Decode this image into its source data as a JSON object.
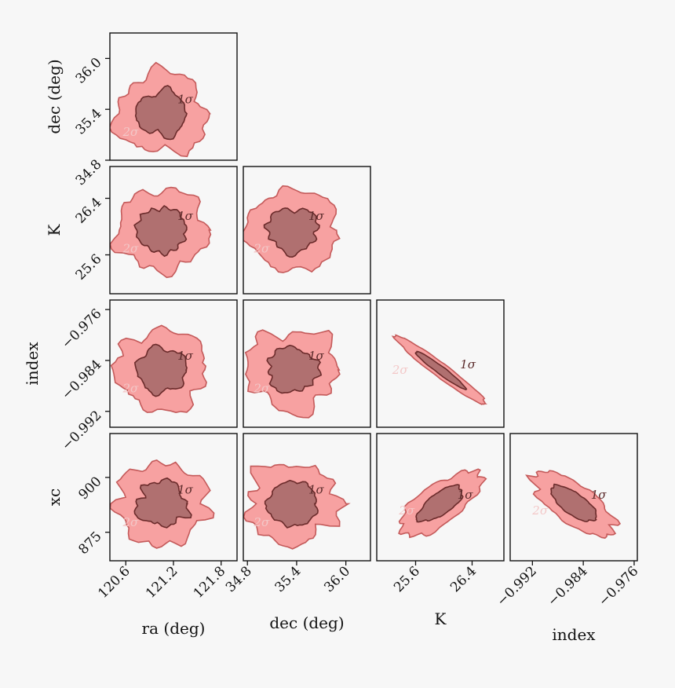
{
  "chart_data": {
    "type": "corner",
    "parameters": [
      "ra (deg)",
      "dec (deg)",
      "K",
      "index",
      "xc"
    ],
    "x_axes": [
      {
        "label": "ra (deg)",
        "ticks": [
          "120.6",
          "121.2",
          "121.8"
        ]
      },
      {
        "label": "dec (deg)",
        "ticks": [
          "34.8",
          "35.4",
          "36.0"
        ]
      },
      {
        "label": "K",
        "ticks": [
          "25.6",
          "26.4"
        ]
      },
      {
        "label": "index",
        "ticks": [
          "−0.992",
          "−0.984",
          "−0.976"
        ]
      }
    ],
    "y_axes": [
      {
        "label": "dec (deg)",
        "ticks": [
          "36.0",
          "35.4",
          "34.8"
        ]
      },
      {
        "label": "K",
        "ticks": [
          "26.4",
          "25.6"
        ]
      },
      {
        "label": "index",
        "ticks": [
          "−0.976",
          "−0.984",
          "−0.992"
        ]
      },
      {
        "label": "xc",
        "ticks": [
          "900",
          "875"
        ]
      }
    ],
    "contour_levels": [
      "1σ",
      "2σ"
    ],
    "colors": {
      "inner": "#b07070",
      "outer": "#f7a1a1",
      "edge": "#6b2b2b",
      "outer_edge": "#c45a5a"
    },
    "panels": [
      {
        "x": "ra (deg)",
        "y": "dec (deg)",
        "center": [
          121.05,
          35.35
        ],
        "correlation": 0
      },
      {
        "x": "ra (deg)",
        "y": "K",
        "center": [
          121.05,
          25.95
        ],
        "correlation": 0
      },
      {
        "x": "dec (deg)",
        "y": "K",
        "center": [
          35.35,
          25.95
        ],
        "correlation": 0
      },
      {
        "x": "ra (deg)",
        "y": "index",
        "center": [
          121.05,
          -0.9855
        ],
        "correlation": 0
      },
      {
        "x": "dec (deg)",
        "y": "index",
        "center": [
          35.35,
          -0.9855
        ],
        "correlation": 0
      },
      {
        "x": "K",
        "y": "index",
        "center": [
          25.95,
          -0.9855
        ],
        "correlation": -0.99
      },
      {
        "x": "ra (deg)",
        "y": "xc",
        "center": [
          121.05,
          888
        ],
        "correlation": 0
      },
      {
        "x": "dec (deg)",
        "y": "xc",
        "center": [
          35.35,
          888
        ],
        "correlation": 0
      },
      {
        "x": "K",
        "y": "xc",
        "center": [
          25.95,
          888
        ],
        "correlation": 0.9
      },
      {
        "x": "index",
        "y": "xc",
        "center": [
          -0.9855,
          888
        ],
        "correlation": -0.9
      }
    ]
  }
}
